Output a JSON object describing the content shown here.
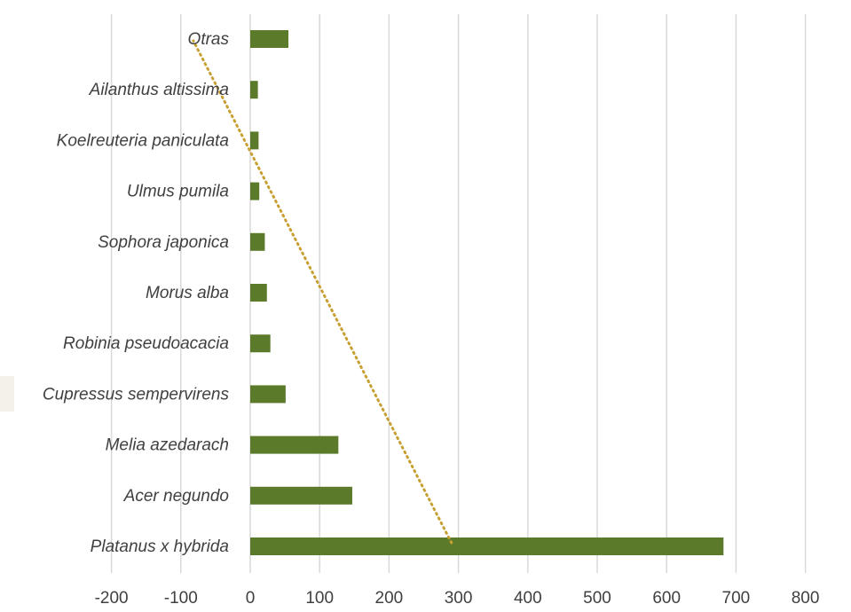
{
  "chart_data": {
    "type": "bar",
    "orientation": "horizontal",
    "categories": [
      "Platanus x hybrida",
      "Acer negundo",
      "Melia azedarach",
      "Cupressus sempervirens",
      "Robinia pseudoacacia",
      "Morus alba",
      "Sophora japonica",
      "Ulmus pumila",
      "Koelreuteria paniculata",
      "Ailanthus altissima",
      "Otras"
    ],
    "values": [
      682,
      147,
      127,
      51,
      29,
      24,
      21,
      13,
      12,
      11,
      55
    ],
    "xlim": [
      -200,
      800
    ],
    "x_ticks": [
      "-200",
      "-100",
      "0",
      "100",
      "200",
      "300",
      "400",
      "500",
      "600",
      "700",
      "800"
    ],
    "grid": true,
    "trendline": {
      "style": "dotted",
      "type": "linear",
      "start": {
        "x": 290,
        "category": "Platanus x hybrida"
      },
      "end": {
        "x": -82,
        "category": "Otras"
      }
    },
    "title": "",
    "xlabel": "",
    "ylabel": ""
  },
  "colors": {
    "bar": "#5b7b2b",
    "trendline": "#c8a032",
    "grid": "#d9d9d9",
    "text": "#404040"
  }
}
